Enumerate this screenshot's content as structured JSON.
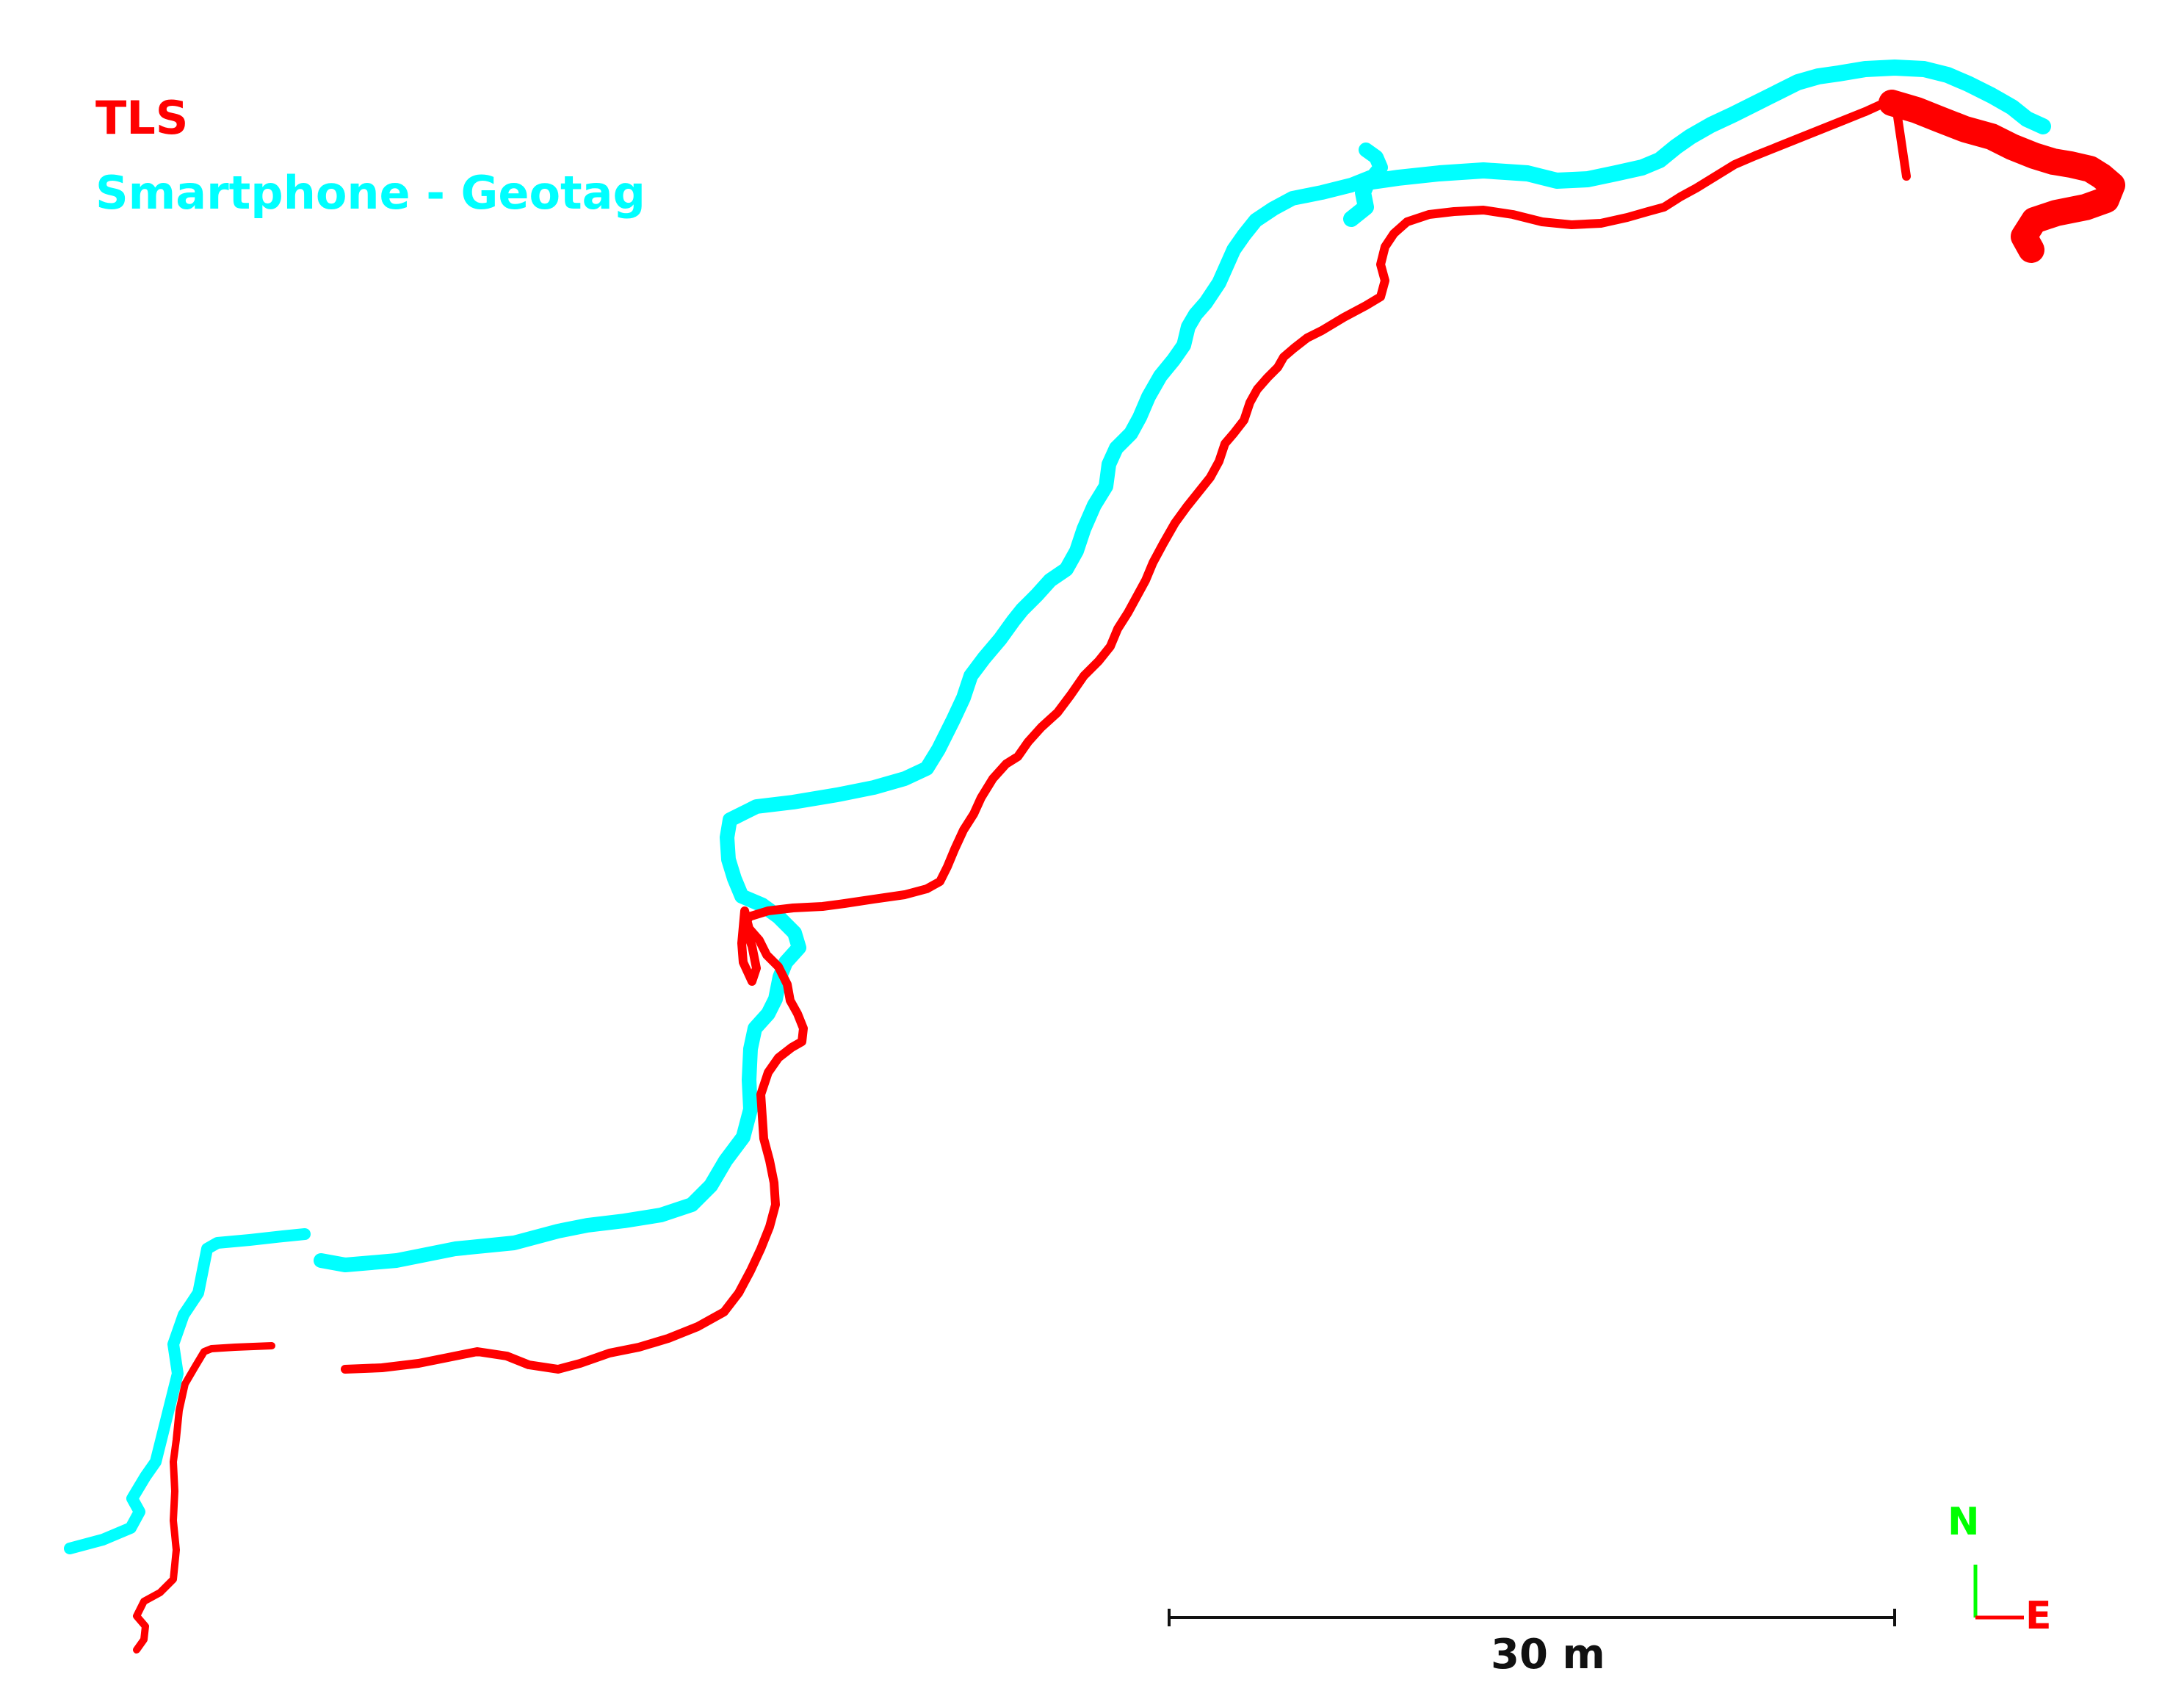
{
  "legend": {
    "items": [
      {
        "label": "TLS",
        "color": "#ff0000"
      },
      {
        "label": "Smartphone - Geotag",
        "color": "#00ffff"
      }
    ]
  },
  "scale_bar": {
    "label": "30 m",
    "length_m": 30
  },
  "north_arrow": {
    "north_label": "N",
    "east_label": "E",
    "north_color": "#00ff00",
    "east_color": "#ff0000"
  },
  "colors": {
    "tls": "#ff0000",
    "smartphone": "#00ffff",
    "scale": "#111111"
  }
}
